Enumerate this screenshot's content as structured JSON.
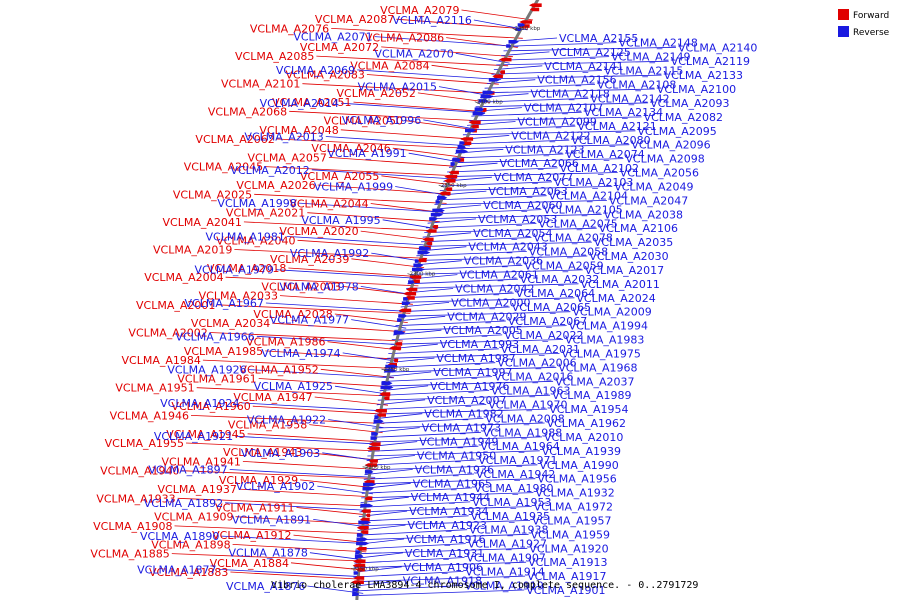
{
  "caption": "Vibrio cholerae LMA3894-4 chromosome I, complete sequence. - 0..2791729",
  "legend": {
    "forward_label": "Forward",
    "reverse_label": "Reverse",
    "forward_color": "#e00000",
    "reverse_color": "#1a1ae0"
  },
  "ticks": [
    "2450 kbp",
    "2400 kbp",
    "2350 kbp",
    "2300 kbp",
    "2250 kbp",
    "2200 kbp",
    "2150 kbp"
  ],
  "labels_left_forward": [
    "VCLMA_A2079",
    "VCLMA_A2087",
    "VCLMA_A2076",
    "VCLMA_A2086",
    "VCLMA_A2072",
    "VCLMA_A2085",
    "VCLMA_A2084",
    "VCLMA_A2083",
    "VCLMA_A2101",
    "VCLMA_A2052",
    "VCLMA_A2051",
    "VCLMA_A2068",
    "VCLMA_A2050",
    "VCLMA_A2048",
    "VCLMA_A2062",
    "VCLMA_A2046",
    "VCLMA_A2057",
    "VCLMA_A2045",
    "VCLMA_A2055",
    "VCLMA_A2026",
    "VCLMA_A2025",
    "VCLMA_A2044",
    "VCLMA_A2021",
    "VCLMA_A2041",
    "VCLMA_A2020",
    "VCLMA_A2040",
    "VCLMA_A2019",
    "VCLMA_A2039",
    "VCLMA_A2018",
    "VCLMA_A2004",
    "VCLMA_A2003",
    "VCLMA_A2033",
    "VCLMA_A2001",
    "VCLMA_A2028",
    "VCLMA_A2034",
    "VCLMA_A2002",
    "VCLMA_A1986",
    "VCLMA_A1985",
    "VCLMA_A1984",
    "VCLMA_A1952",
    "VCLMA_A1961",
    "VCLMA_A1951",
    "VCLMA_A1947",
    "VCLMA_A1960",
    "VCLMA_A1946",
    "VCLMA_A1958",
    "VCLMA_A1945",
    "VCLMA_A1955",
    "VCLMA_A1943",
    "VCLMA_A1941",
    "VCLMA_A1940",
    "VCLMA_A1929",
    "VCLMA_A1937",
    "VCLMA_A1933",
    "VCLMA_A1911",
    "VCLMA_A1909",
    "VCLMA_A1908",
    "VCLMA_A1912",
    "VCLMA_A1898",
    "VCLMA_A1885",
    "VCLMA_A1884",
    "VCLMA_A1883"
  ],
  "labels_left_reverse": [
    "VCLMA_A2116",
    "VCLMA_A2071",
    "VCLMA_A2070",
    "VCLMA_A2069",
    "VCLMA_A2015",
    "VCLMA_A2014",
    "VCLMA_A1996",
    "VCLMA_A2013",
    "VCLMA_A1991",
    "VCLMA_A2012",
    "VCLMA_A1999",
    "VCLMA_A1998",
    "VCLMA_A1995",
    "VCLMA_A1981",
    "VCLMA_A1992",
    "VCLMA_A1979",
    "VCLMA_A1978",
    "VCLMA_A1967",
    "VCLMA_A1977",
    "VCLMA_A1966",
    "VCLMA_A1974",
    "VCLMA_A1926",
    "VCLMA_A1925",
    "VCLMA_A1924",
    "VCLMA_A1922",
    "VCLMA_A1921",
    "VCLMA_A1903",
    "VCLMA_A1897",
    "VCLMA_A1902",
    "VCLMA_A1892",
    "VCLMA_A1891",
    "VCLMA_A1890",
    "VCLMA_A1878",
    "VCLMA_A1877",
    "VCLMA_A1876"
  ],
  "labels_right_reverse": [
    "VCLMA_A2155",
    "VCLMA_A2148",
    "VCLMA_A2140",
    "VCLMA_A2125",
    "VCLMA_A2149",
    "VCLMA_A2119",
    "VCLMA_A2141",
    "VCLMA_A2115",
    "VCLMA_A2133",
    "VCLMA_A2156",
    "VCLMA_A2108",
    "VCLMA_A2100",
    "VCLMA_A2118",
    "VCLMA_A2142",
    "VCLMA_A2093",
    "VCLMA_A2107",
    "VCLMA_A2134",
    "VCLMA_A2082",
    "VCLMA_A2099",
    "VCLMA_A2121",
    "VCLMA_A2095",
    "VCLMA_A2122",
    "VCLMA_A2080",
    "VCLMA_A2096",
    "VCLMA_A2123",
    "VCLMA_A2074",
    "VCLMA_A2098",
    "VCLMA_A2066",
    "VCLMA_A2102",
    "VCLMA_A2056",
    "VCLMA_A2077",
    "VCLMA_A2103",
    "VCLMA_A2049",
    "VCLMA_A2063",
    "VCLMA_A2104",
    "VCLMA_A2047",
    "VCLMA_A2060",
    "VCLMA_A2105",
    "VCLMA_A2038",
    "VCLMA_A2053",
    "VCLMA_A2075",
    "VCLMA_A2106",
    "VCLMA_A2054",
    "VCLMA_A2078",
    "VCLMA_A2035",
    "VCLMA_A2043",
    "VCLMA_A2058",
    "VCLMA_A2030",
    "VCLMA_A2036",
    "VCLMA_A2059",
    "VCLMA_A2017",
    "VCLMA_A2061",
    "VCLMA_A2032",
    "VCLMA_A2011",
    "VCLMA_A2042",
    "VCLMA_A2064",
    "VCLMA_A2024",
    "VCLMA_A2000",
    "VCLMA_A2065",
    "VCLMA_A2009",
    "VCLMA_A2029",
    "VCLMA_A2067",
    "VCLMA_A1994",
    "VCLMA_A2005",
    "VCLMA_A2022",
    "VCLMA_A1983",
    "VCLMA_A1993",
    "VCLMA_A2031",
    "VCLMA_A1975",
    "VCLMA_A1987",
    "VCLMA_A2006",
    "VCLMA_A1968",
    "VCLMA_A1997",
    "VCLMA_A2016",
    "VCLMA_A2037",
    "VCLMA_A1976",
    "VCLMA_A1963",
    "VCLMA_A1989",
    "VCLMA_A2007",
    "VCLMA_A1970",
    "VCLMA_A1954",
    "VCLMA_A1982",
    "VCLMA_A2008",
    "VCLMA_A1962",
    "VCLMA_A1973",
    "VCLMA_A1988",
    "VCLMA_A2010",
    "VCLMA_A1949",
    "VCLMA_A1964",
    "VCLMA_A1939",
    "VCLMA_A1950",
    "VCLMA_A1971",
    "VCLMA_A1990",
    "VCLMA_A1936",
    "VCLMA_A1942",
    "VCLMA_A1956",
    "VCLMA_A1965",
    "VCLMA_A1980",
    "VCLMA_A1932",
    "VCLMA_A1944",
    "VCLMA_A1953",
    "VCLMA_A1972",
    "VCLMA_A1934",
    "VCLMA_A1935",
    "VCLMA_A1957",
    "VCLMA_A1923",
    "VCLMA_A1938",
    "VCLMA_A1959",
    "VCLMA_A1916",
    "VCLMA_A1927",
    "VCLMA_A1920",
    "VCLMA_A1931",
    "VCLMA_A1907",
    "VCLMA_A1913",
    "VCLMA_A1906",
    "VCLMA_A1914",
    "VCLMA_A1917",
    "VCLMA_A1918",
    "VCLMA_A1919",
    "VCLMA_A1901"
  ]
}
